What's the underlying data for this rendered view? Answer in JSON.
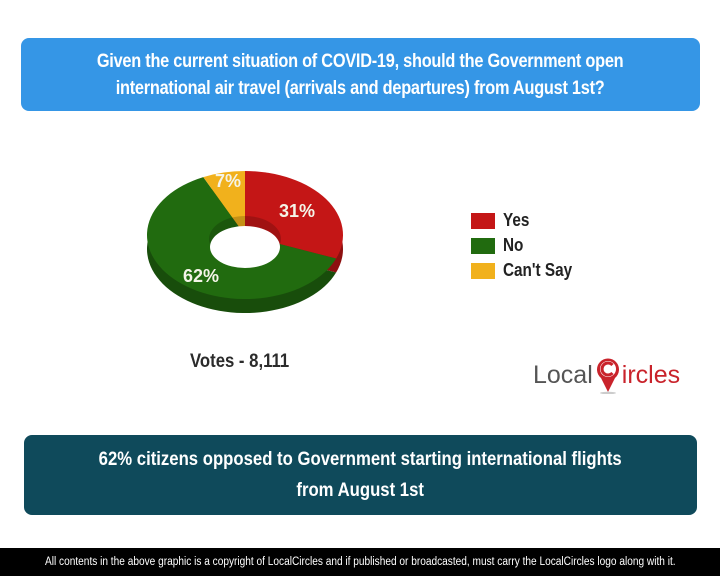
{
  "header": {
    "question_line1": "Given the current situation of COVID-19, should the Government open",
    "question_line2": "international air travel (arrivals and departures) from August 1st?",
    "bg_color": "#3596e6"
  },
  "chart_data": {
    "type": "pie",
    "style": "3d-donut",
    "categories": [
      "Yes",
      "No",
      "Can't Say"
    ],
    "values": [
      31,
      62,
      7
    ],
    "labels": [
      "31%",
      "62%",
      "7%"
    ],
    "colors": [
      "#c41616",
      "#216b0f",
      "#f1b11c"
    ],
    "title": "Given the current situation of COVID-19, should the Government open international air travel (arrivals and departures) from August 1st?",
    "legend_position": "right",
    "total_votes": "8,111"
  },
  "legend": {
    "items": [
      {
        "label": "Yes",
        "color": "#c41616"
      },
      {
        "label": "No",
        "color": "#216b0f"
      },
      {
        "label": "Can't Say",
        "color": "#f1b11c"
      }
    ]
  },
  "votes_label": "Votes - 8,111",
  "logo": {
    "part1": "Local",
    "part2": "ircles"
  },
  "summary": {
    "line1": "62% citizens opposed to Government starting international flights",
    "line2": "from August 1st",
    "bg_color": "#0f4a5b"
  },
  "copyright": "All contents in the above graphic is a copyright of LocalCircles and if published or broadcasted, must carry the LocalCircles logo along with it."
}
